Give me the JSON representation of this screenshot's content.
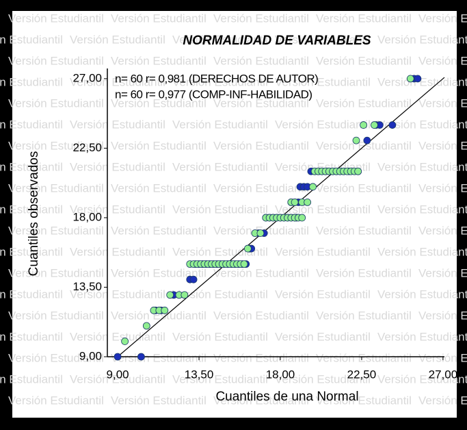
{
  "chart_data": {
    "type": "scatter",
    "title": "NORMALIDAD DE VARIABLES",
    "watermark": "Versión Estudiantil",
    "xlabel": "Cuantiles de una Normal",
    "ylabel": "Cuantiles observados",
    "xlim": [
      8.43,
      27.08
    ],
    "ylim": [
      9,
      27.66
    ],
    "xticks": [
      {
        "value": 9,
        "label": "9,00"
      },
      {
        "value": 13.5,
        "label": "13,50"
      },
      {
        "value": 18,
        "label": "18,00"
      },
      {
        "value": 22.5,
        "label": "22,50"
      },
      {
        "value": 27,
        "label": "27,00"
      }
    ],
    "yticks": [
      {
        "value": 9,
        "label": "9,00"
      },
      {
        "value": 13.5,
        "label": "13,50"
      },
      {
        "value": 18,
        "label": "18,00"
      },
      {
        "value": 22.5,
        "label": "22,50"
      },
      {
        "value": 27,
        "label": "27,00"
      }
    ],
    "series": [
      {
        "name": "n= 60 r= 0,981 (DERECHOS DE AUTOR)",
        "color": "#1c2fb8",
        "x": [
          9.0,
          10.3,
          11.1,
          11.4,
          12.1,
          13.0,
          13.2,
          13.3,
          13.5,
          13.7,
          13.9,
          14.1,
          14.3,
          14.5,
          14.7,
          14.9,
          15.1,
          15.3,
          15.5,
          15.7,
          15.9,
          16.1,
          16.3,
          16.4,
          16.8,
          17.1,
          17.2,
          17.4,
          17.6,
          17.8,
          18.0,
          18.2,
          18.4,
          18.6,
          18.8,
          18.9,
          18.6,
          18.8,
          19.0,
          19.1,
          19.3,
          19.5,
          19.7,
          19.9,
          20.1,
          20.3,
          20.5,
          20.7,
          20.9,
          21.1,
          21.3,
          21.5,
          21.8,
          22.3,
          22.8,
          23.3,
          23.5,
          24.2,
          25.4,
          25.6
        ],
        "values": [
          9,
          9,
          12,
          12,
          13,
          14,
          14,
          15,
          15,
          15,
          15,
          15,
          15,
          15,
          15,
          15,
          15,
          15,
          15,
          15,
          15,
          15,
          16,
          16,
          17,
          17,
          18,
          18,
          18,
          18,
          18,
          18,
          18,
          18,
          18,
          18,
          19,
          19,
          19,
          20,
          20,
          20,
          21,
          21,
          21,
          21,
          21,
          21,
          21,
          21,
          21,
          21,
          21,
          21,
          23,
          24,
          24,
          24,
          27,
          27
        ]
      },
      {
        "name": "n= 60 r= 0,977 (COMP-INF-HABILIDAD)",
        "color": "#90ee90",
        "x": [
          9.4,
          10.6,
          11.0,
          11.3,
          11.6,
          11.9,
          12.4,
          12.7,
          13.0,
          13.2,
          13.4,
          13.6,
          13.8,
          14.0,
          14.2,
          14.4,
          14.6,
          14.8,
          15.0,
          15.2,
          15.4,
          15.6,
          15.8,
          16.0,
          16.2,
          16.6,
          16.9,
          17.2,
          17.4,
          17.6,
          17.8,
          18.0,
          18.2,
          18.4,
          18.6,
          18.8,
          19.0,
          19.2,
          18.6,
          18.8,
          19.2,
          19.5,
          19.8,
          19.9,
          20.1,
          20.3,
          20.5,
          20.7,
          20.9,
          21.1,
          21.3,
          21.5,
          21.7,
          21.9,
          22.1,
          22.3,
          22.2,
          22.6,
          23.2,
          25.2
        ],
        "values": [
          10,
          11,
          12,
          12,
          12,
          13,
          13,
          13,
          15,
          15,
          15,
          15,
          15,
          15,
          15,
          15,
          15,
          15,
          15,
          15,
          15,
          15,
          15,
          15,
          16,
          17,
          17,
          18,
          18,
          18,
          18,
          18,
          18,
          18,
          18,
          18,
          18,
          18,
          19,
          19,
          19,
          19,
          20,
          21,
          21,
          21,
          21,
          21,
          21,
          21,
          21,
          21,
          21,
          21,
          21,
          21,
          23,
          24,
          24,
          27
        ]
      }
    ]
  }
}
